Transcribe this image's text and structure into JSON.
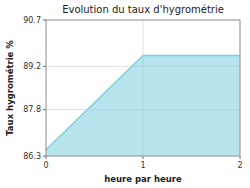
{
  "chart_data": {
    "type": "area",
    "title": "Evolution du taux d'hygrométrie",
    "xlabel": "heure par heure",
    "ylabel": "Taux hygrométrie %",
    "x": [
      0,
      1,
      2
    ],
    "values": [
      86.5,
      89.55,
      89.55
    ],
    "color": "#7dcfdf",
    "xlim": [
      0,
      2
    ],
    "ylim": [
      86.3,
      90.7
    ],
    "xticks": [
      0,
      1,
      2
    ],
    "yticks": [
      86.3,
      87.8,
      89.2,
      90.7
    ],
    "grid": true
  }
}
